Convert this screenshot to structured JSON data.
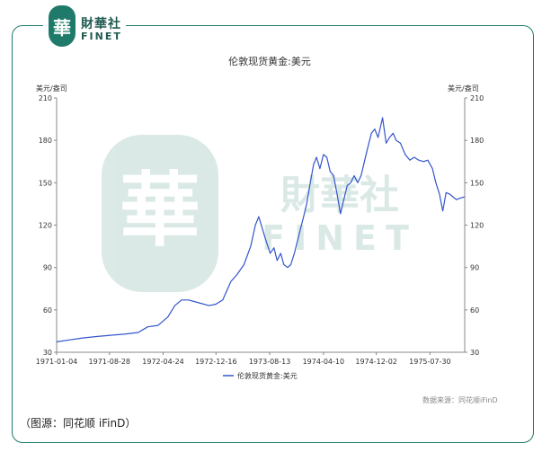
{
  "logo": {
    "mark": "華",
    "cn": "財華社",
    "en": "FINET"
  },
  "watermark": {
    "cn": "財華社",
    "en": "FINET"
  },
  "caption": "（图源：同花顺 iFinD）",
  "source": "数据来源：同花顺iFinD",
  "chart_data": {
    "type": "line",
    "title": "伦敦现货黄金:美元",
    "ylabel_left": "美元/盎司",
    "ylabel_right": "美元/盎司",
    "ylim": [
      30,
      210
    ],
    "yticks": [
      30,
      60,
      90,
      120,
      150,
      180,
      210
    ],
    "xlim": [
      "1971-01-04",
      "1976-01-01"
    ],
    "xticks": [
      "1971-01-04",
      "1971-08-28",
      "1972-04-24",
      "1972-12-16",
      "1973-08-13",
      "1974-04-10",
      "1974-12-02",
      "1975-07-30"
    ],
    "grid": false,
    "legend_position": "bottom",
    "color": "#3355cc",
    "series": [
      {
        "name": "伦敦现货黄金:美元",
        "points": [
          [
            "1971-01-04",
            37.4
          ],
          [
            "1971-03-01",
            38.7
          ],
          [
            "1971-05-01",
            40.1
          ],
          [
            "1971-07-01",
            41.1
          ],
          [
            "1971-09-01",
            42.0
          ],
          [
            "1971-11-01",
            42.8
          ],
          [
            "1972-01-03",
            44.0
          ],
          [
            "1972-02-15",
            48.0
          ],
          [
            "1972-04-01",
            49.0
          ],
          [
            "1972-05-15",
            55.0
          ],
          [
            "1972-06-15",
            63.0
          ],
          [
            "1972-07-15",
            67.0
          ],
          [
            "1972-08-15",
            67.0
          ],
          [
            "1972-10-01",
            65.0
          ],
          [
            "1972-11-15",
            63.0
          ],
          [
            "1972-12-15",
            64.0
          ],
          [
            "1973-01-15",
            67.0
          ],
          [
            "1973-02-20",
            80.0
          ],
          [
            "1973-03-20",
            85.0
          ],
          [
            "1973-04-20",
            92.0
          ],
          [
            "1973-05-20",
            105.0
          ],
          [
            "1973-06-10",
            120.0
          ],
          [
            "1973-06-25",
            126.0
          ],
          [
            "1973-07-10",
            118.0
          ],
          [
            "1973-07-25",
            110.0
          ],
          [
            "1973-08-15",
            100.0
          ],
          [
            "1973-09-01",
            104.0
          ],
          [
            "1973-09-15",
            95.0
          ],
          [
            "1973-10-01",
            100.0
          ],
          [
            "1973-10-15",
            92.0
          ],
          [
            "1973-11-01",
            90.0
          ],
          [
            "1973-11-15",
            92.0
          ],
          [
            "1973-12-01",
            100.0
          ],
          [
            "1973-12-20",
            112.0
          ],
          [
            "1974-01-10",
            125.0
          ],
          [
            "1974-01-25",
            135.0
          ],
          [
            "1974-02-10",
            150.0
          ],
          [
            "1974-02-25",
            163.0
          ],
          [
            "1974-03-10",
            168.0
          ],
          [
            "1974-03-25",
            160.0
          ],
          [
            "1974-04-10",
            170.0
          ],
          [
            "1974-04-25",
            168.0
          ],
          [
            "1974-05-10",
            158.0
          ],
          [
            "1974-05-25",
            155.0
          ],
          [
            "1974-06-10",
            142.0
          ],
          [
            "1974-06-25",
            128.0
          ],
          [
            "1974-07-10",
            138.0
          ],
          [
            "1974-07-25",
            148.0
          ],
          [
            "1974-08-10",
            150.0
          ],
          [
            "1974-08-25",
            155.0
          ],
          [
            "1974-09-10",
            150.0
          ],
          [
            "1974-09-25",
            155.0
          ],
          [
            "1974-10-10",
            165.0
          ],
          [
            "1974-10-25",
            175.0
          ],
          [
            "1974-11-10",
            185.0
          ],
          [
            "1974-11-25",
            188.0
          ],
          [
            "1974-12-10",
            182.0
          ],
          [
            "1974-12-30",
            196.0
          ],
          [
            "1975-01-15",
            178.0
          ],
          [
            "1975-01-30",
            182.0
          ],
          [
            "1975-02-15",
            185.0
          ],
          [
            "1975-03-01",
            180.0
          ],
          [
            "1975-03-20",
            178.0
          ],
          [
            "1975-04-10",
            170.0
          ],
          [
            "1975-05-01",
            166.0
          ],
          [
            "1975-05-20",
            168.0
          ],
          [
            "1975-06-10",
            166.0
          ],
          [
            "1975-07-01",
            165.0
          ],
          [
            "1975-07-20",
            166.0
          ],
          [
            "1975-08-10",
            160.0
          ],
          [
            "1975-08-25",
            150.0
          ],
          [
            "1975-09-10",
            142.0
          ],
          [
            "1975-09-25",
            130.0
          ],
          [
            "1975-10-10",
            143.0
          ],
          [
            "1975-10-25",
            142.0
          ],
          [
            "1975-11-10",
            140.0
          ],
          [
            "1975-11-25",
            138.0
          ],
          [
            "1975-12-10",
            139.0
          ],
          [
            "1975-12-31",
            140.0
          ]
        ]
      }
    ]
  }
}
